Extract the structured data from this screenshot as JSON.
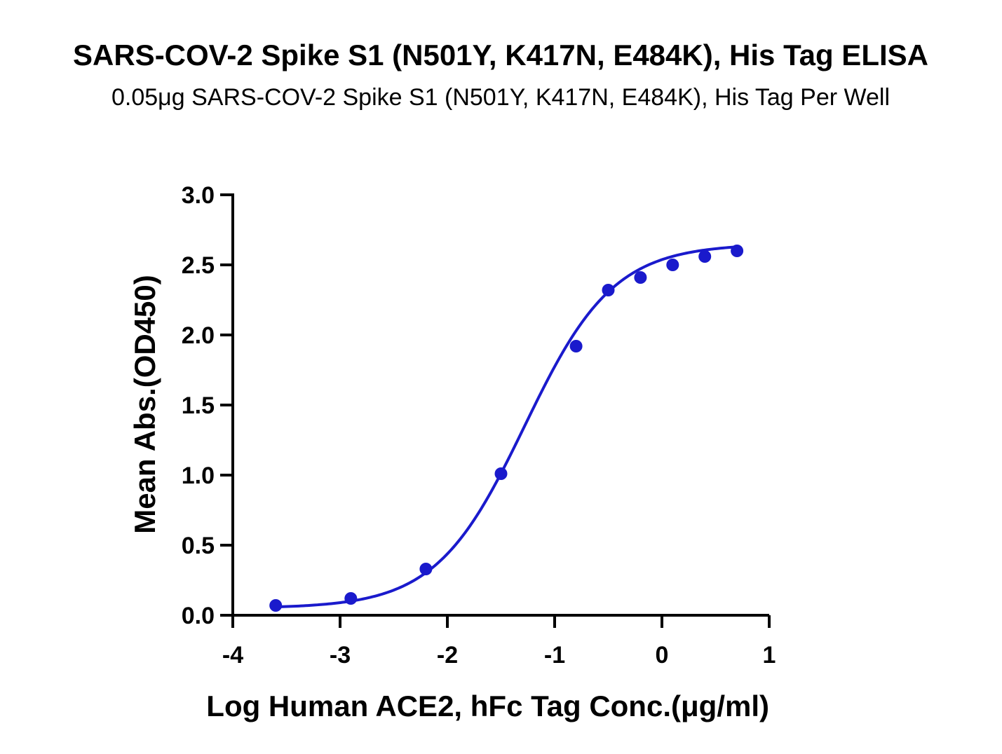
{
  "chart_data": {
    "type": "scatter",
    "title": "SARS-COV-2 Spike S1 (N501Y, K417N, E484K), His Tag ELISA",
    "subtitle": "0.05μg SARS-COV-2 Spike S1 (N501Y, K417N, E484K), His Tag Per Well",
    "xlabel": "Log Human ACE2, hFc Tag Conc.(μg/ml)",
    "ylabel": "Mean Abs.(OD450)",
    "xlim": [
      -4,
      1
    ],
    "ylim": [
      0,
      3.0
    ],
    "x_ticks": [
      -4,
      -3,
      -2,
      -1,
      0,
      1
    ],
    "x_tick_labels": [
      "-4",
      "-3",
      "-2",
      "-1",
      "0",
      "1"
    ],
    "y_ticks": [
      0,
      0.5,
      1.0,
      1.5,
      2.0,
      2.5,
      3.0
    ],
    "y_tick_labels": [
      "0.0",
      "0.5",
      "1.0",
      "1.5",
      "2.0",
      "2.5",
      "3.0"
    ],
    "grid": false,
    "legend": "none",
    "series": [
      {
        "name": "Mean Abs.",
        "color": "#1a1acc",
        "x": [
          -3.6,
          -2.9,
          -2.2,
          -1.5,
          -0.8,
          -0.5,
          -0.2,
          0.1,
          0.4,
          0.7
        ],
        "values": [
          0.07,
          0.12,
          0.33,
          1.01,
          1.92,
          2.32,
          2.41,
          2.5,
          2.56,
          2.6
        ]
      }
    ],
    "fit_curve": {
      "type": "4PL",
      "color": "#1a1acc",
      "bottom": 0.05,
      "top": 2.65,
      "logEC50": -1.28,
      "hill": 1.05
    }
  }
}
